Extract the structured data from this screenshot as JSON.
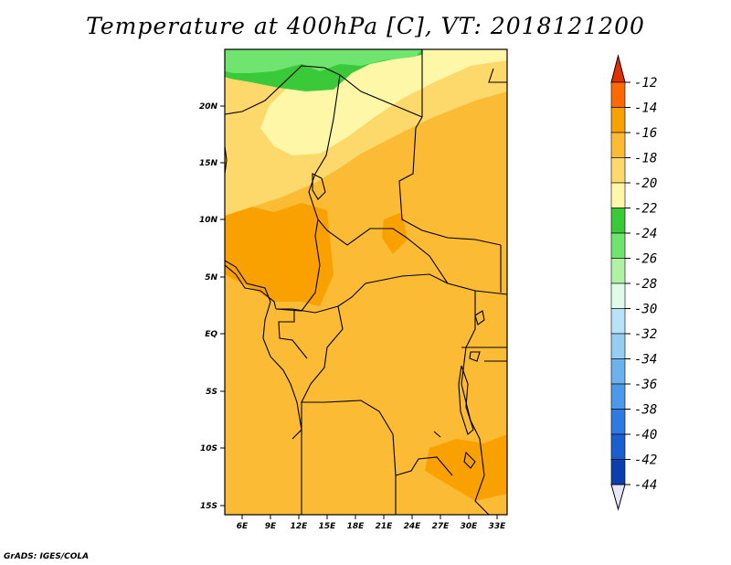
{
  "title": "Temperature at 400hPa [C], VT: 2018121200",
  "credit": "GrADS: IGES/COLA",
  "map": {
    "lat_ticks": [
      "20N",
      "15N",
      "10N",
      "5N",
      "EQ",
      "5S",
      "10S",
      "15S"
    ],
    "lon_ticks": [
      "6E",
      "9E",
      "12E",
      "15E",
      "18E",
      "21E",
      "24E",
      "27E",
      "30E",
      "33E"
    ]
  },
  "colorbar": {
    "labels": [
      "-12",
      "-14",
      "-16",
      "-18",
      "-20",
      "-22",
      "-24",
      "-26",
      "-28",
      "-30",
      "-32",
      "-34",
      "-36",
      "-38",
      "-40",
      "-42",
      "-44"
    ],
    "colors": [
      "#e23000",
      "#ff6a00",
      "#f9a100",
      "#fbbb35",
      "#fcd96a",
      "#fff7a8",
      "#39c939",
      "#6fe46f",
      "#aef2a4",
      "#dffce8",
      "#b7e2f7",
      "#95cef3",
      "#6bb2ef",
      "#4b99e8",
      "#2d7be0",
      "#1a5fcf",
      "#0c3fae",
      "#081f78",
      "#e8e6ff"
    ]
  }
}
